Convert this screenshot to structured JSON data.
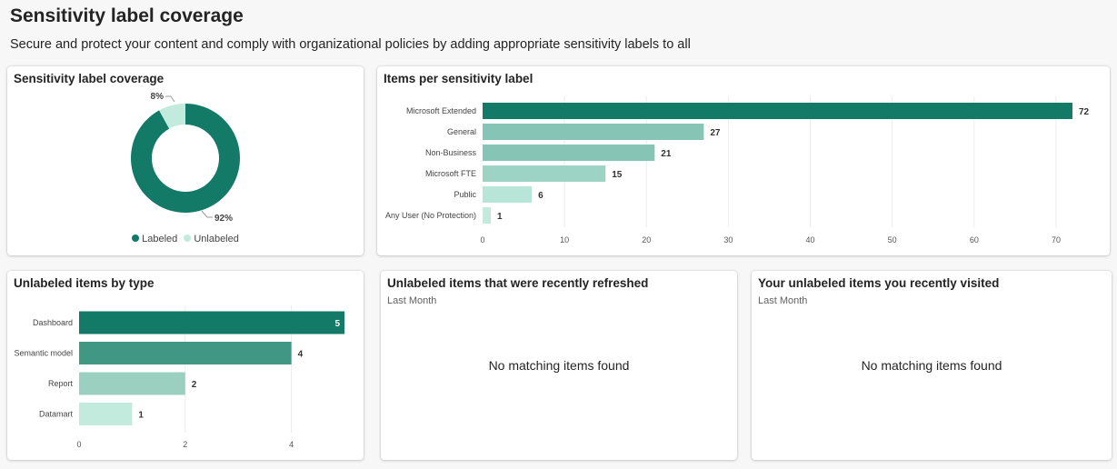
{
  "page": {
    "title": "Sensitivity label coverage",
    "subtitle": "Secure and protect your content and comply with organizational policies by adding appropriate sensitivity labels to all"
  },
  "coverage_card": {
    "title": "Sensitivity label coverage",
    "legend": [
      {
        "label": "Labeled",
        "color": "#127a66"
      },
      {
        "label": "Unlabeled",
        "color": "#c2ebde"
      }
    ]
  },
  "items_per_label_card": {
    "title": "Items per sensitivity label"
  },
  "unlabeled_by_type_card": {
    "title": "Unlabeled items by type"
  },
  "recently_refreshed_card": {
    "title": "Unlabeled items that were recently refreshed",
    "period": "Last Month",
    "empty_message": "No matching items found"
  },
  "recently_visited_card": {
    "title": "Your unlabeled items you recently visited",
    "period": "Last Month",
    "empty_message": "No matching items found"
  },
  "chart_data": [
    {
      "type": "pie",
      "title": "Sensitivity label coverage",
      "donut": true,
      "slices": [
        {
          "label": "Labeled",
          "value": 92,
          "display": "92%",
          "color": "#127a66"
        },
        {
          "label": "Unlabeled",
          "value": 8,
          "display": "8%",
          "color": "#c2ebde"
        }
      ],
      "legend_placement": "bottom"
    },
    {
      "type": "bar",
      "orientation": "horizontal",
      "title": "Items per sensitivity label",
      "categories": [
        "Microsoft Extended",
        "General",
        "Non-Business",
        "Microsoft FTE",
        "Public",
        "Any User (No Protection)"
      ],
      "values": [
        72,
        27,
        21,
        15,
        6,
        1
      ],
      "colors": [
        "#127a66",
        "#86c4b5",
        "#86c4b5",
        "#9dd3c5",
        "#b7e5d8",
        "#c2ebde"
      ],
      "xlim": [
        0,
        73
      ],
      "xticks": [
        0,
        10,
        20,
        30,
        40,
        50,
        60,
        70
      ],
      "grid": true
    },
    {
      "type": "bar",
      "orientation": "horizontal",
      "title": "Unlabeled items by type",
      "categories": [
        "Dashboard",
        "Semantic model",
        "Report",
        "Datamart"
      ],
      "values": [
        5,
        4,
        2,
        1
      ],
      "colors": [
        "#127a66",
        "#3f9784",
        "#9bd0c1",
        "#c2ebde"
      ],
      "xlim": [
        0,
        5
      ],
      "xticks": [
        0,
        2,
        4
      ],
      "grid": true
    }
  ]
}
